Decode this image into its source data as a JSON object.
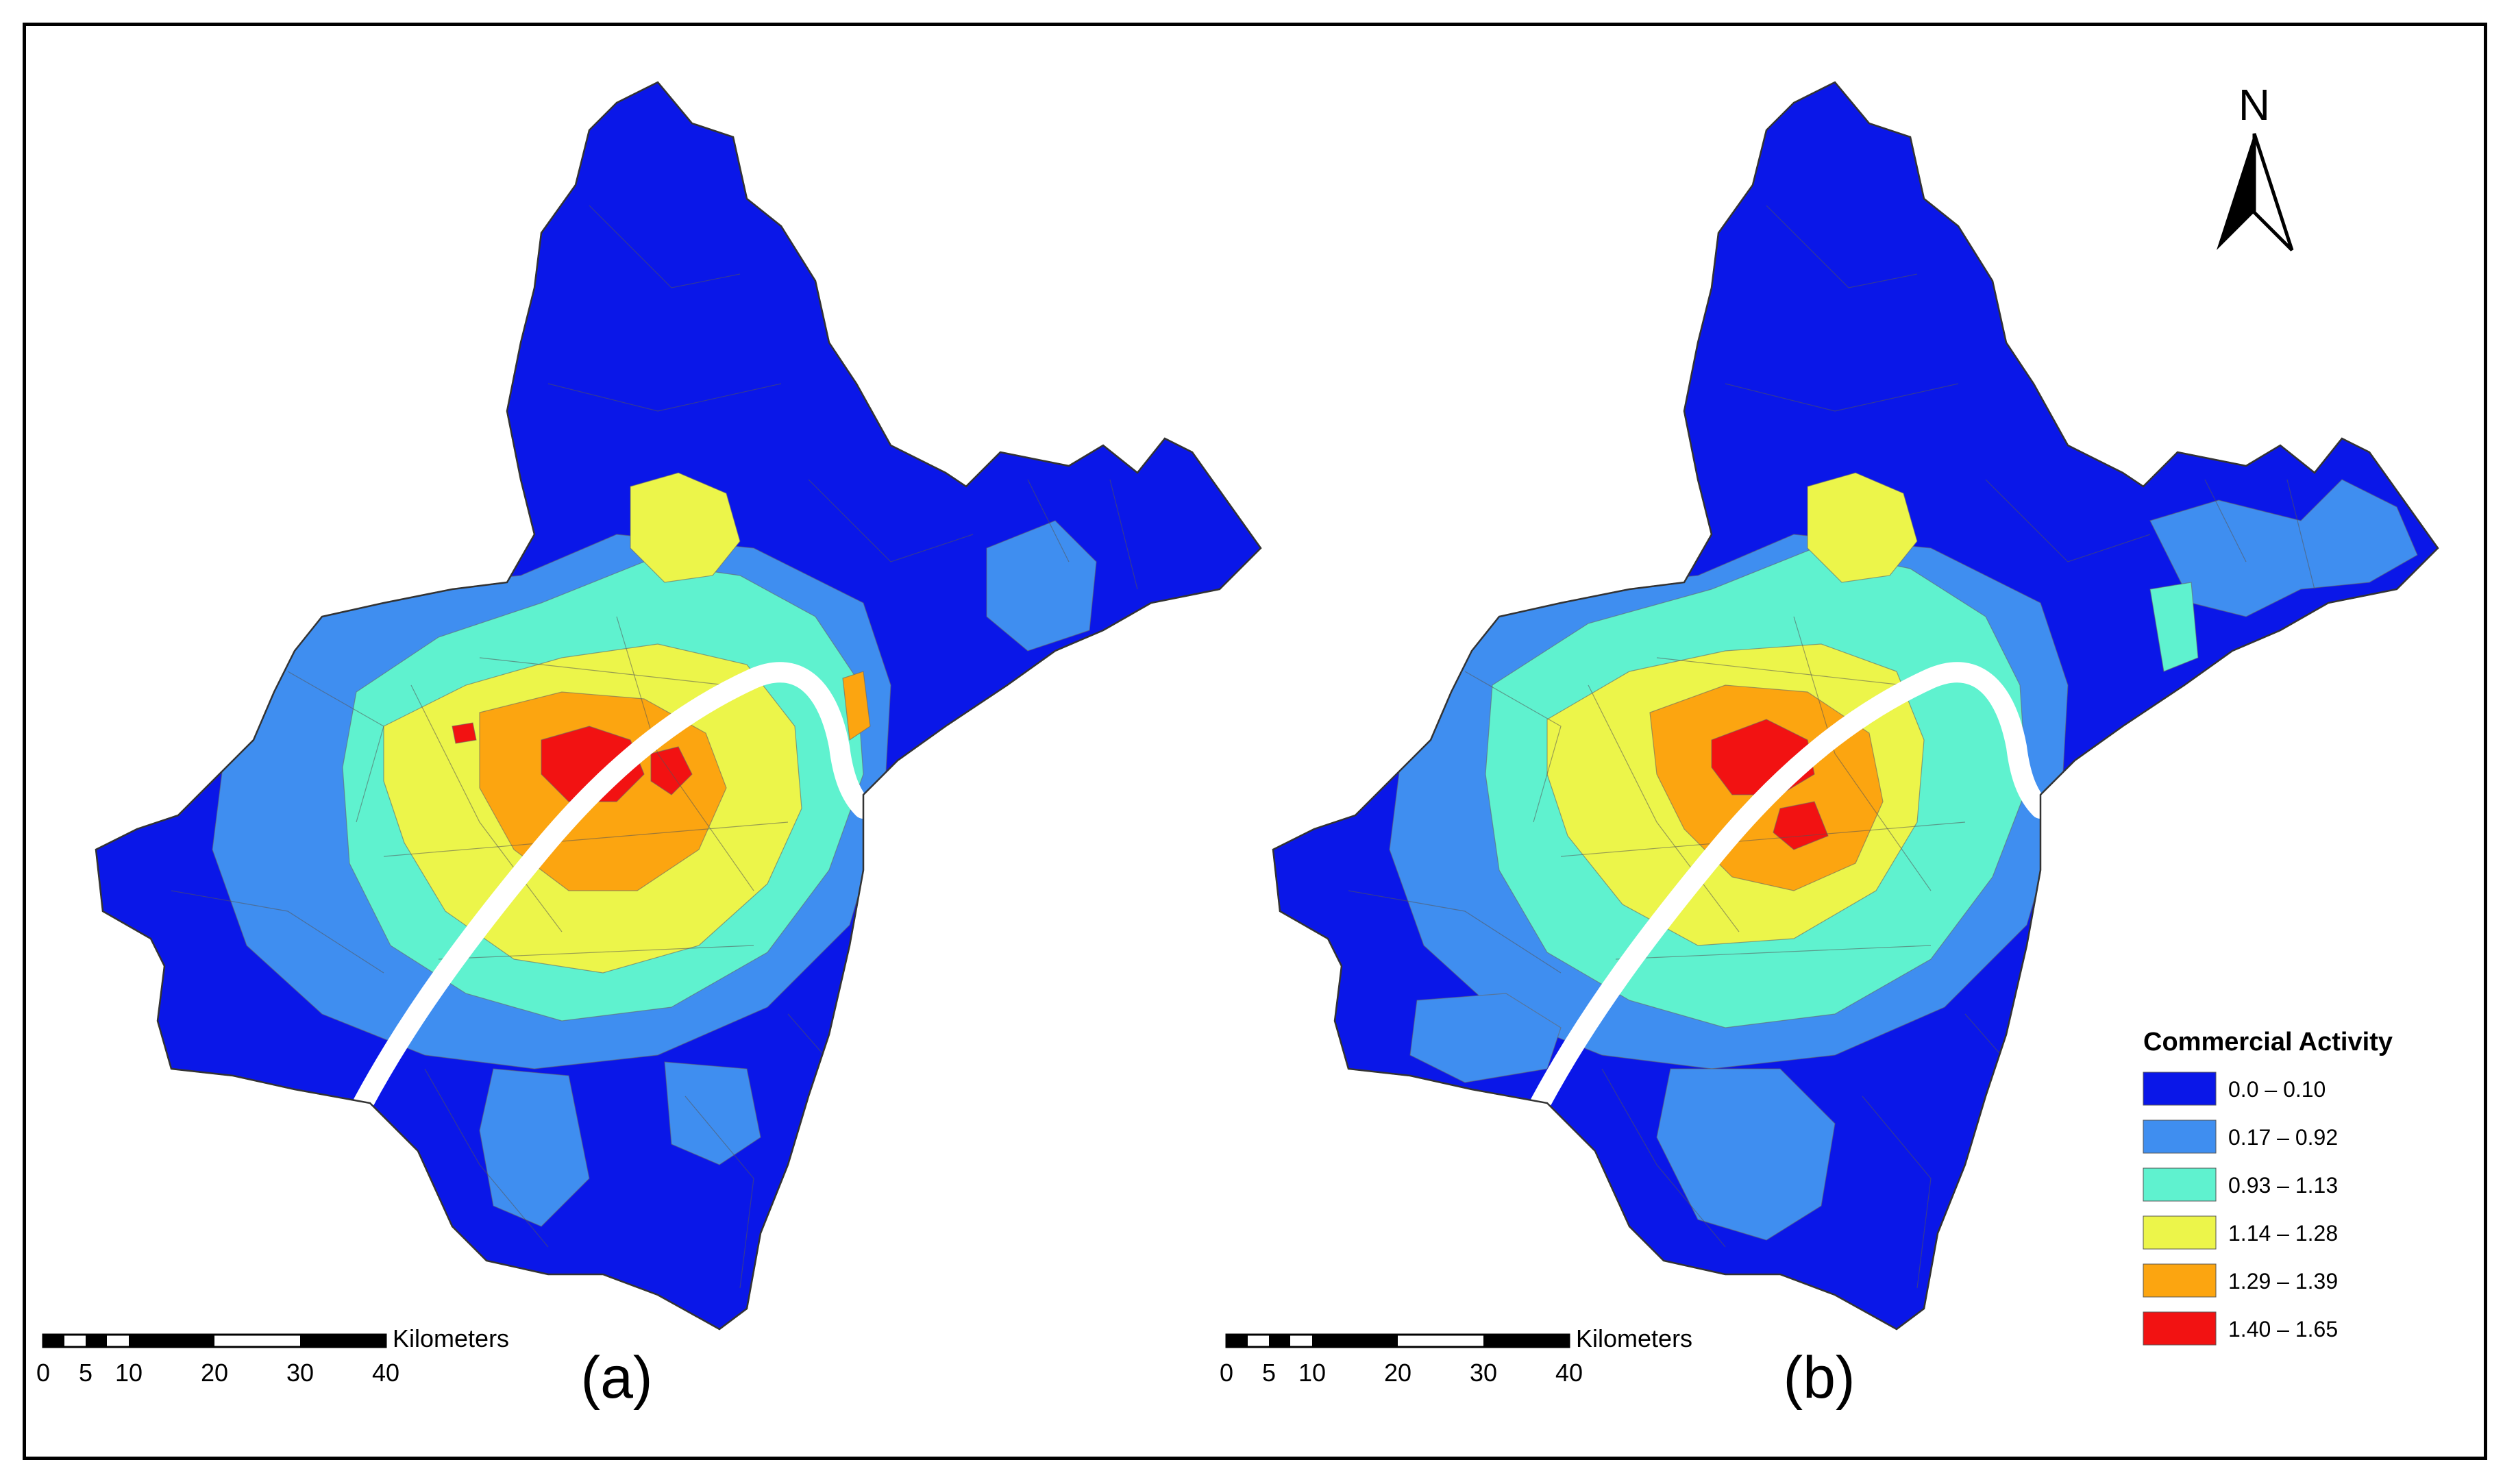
{
  "panels": [
    {
      "id": "a",
      "label": "(a)"
    },
    {
      "id": "b",
      "label": "(b)"
    }
  ],
  "north_arrow": {
    "letter": "N"
  },
  "scale_bar": {
    "unit": "Kilometers",
    "ticks": [
      "0",
      "5",
      "10",
      "20",
      "30",
      "40"
    ]
  },
  "legend": {
    "title": "Commercial Activity",
    "placement": "bottom-right",
    "classes": [
      {
        "range": "0.0 – 0.10",
        "color": "#0a17e8"
      },
      {
        "range": "0.17 – 0.92",
        "color": "#3f8ef0"
      },
      {
        "range": "0.93 – 1.13",
        "color": "#5ff2cf"
      },
      {
        "range": "1.14 – 1.28",
        "color": "#ecf54a"
      },
      {
        "range": "1.29 – 1.39",
        "color": "#fca510"
      },
      {
        "range": "1.40 – 1.65",
        "color": "#f21212"
      }
    ]
  },
  "colors": {
    "river": "#ffffff",
    "boundary": "#444444"
  }
}
